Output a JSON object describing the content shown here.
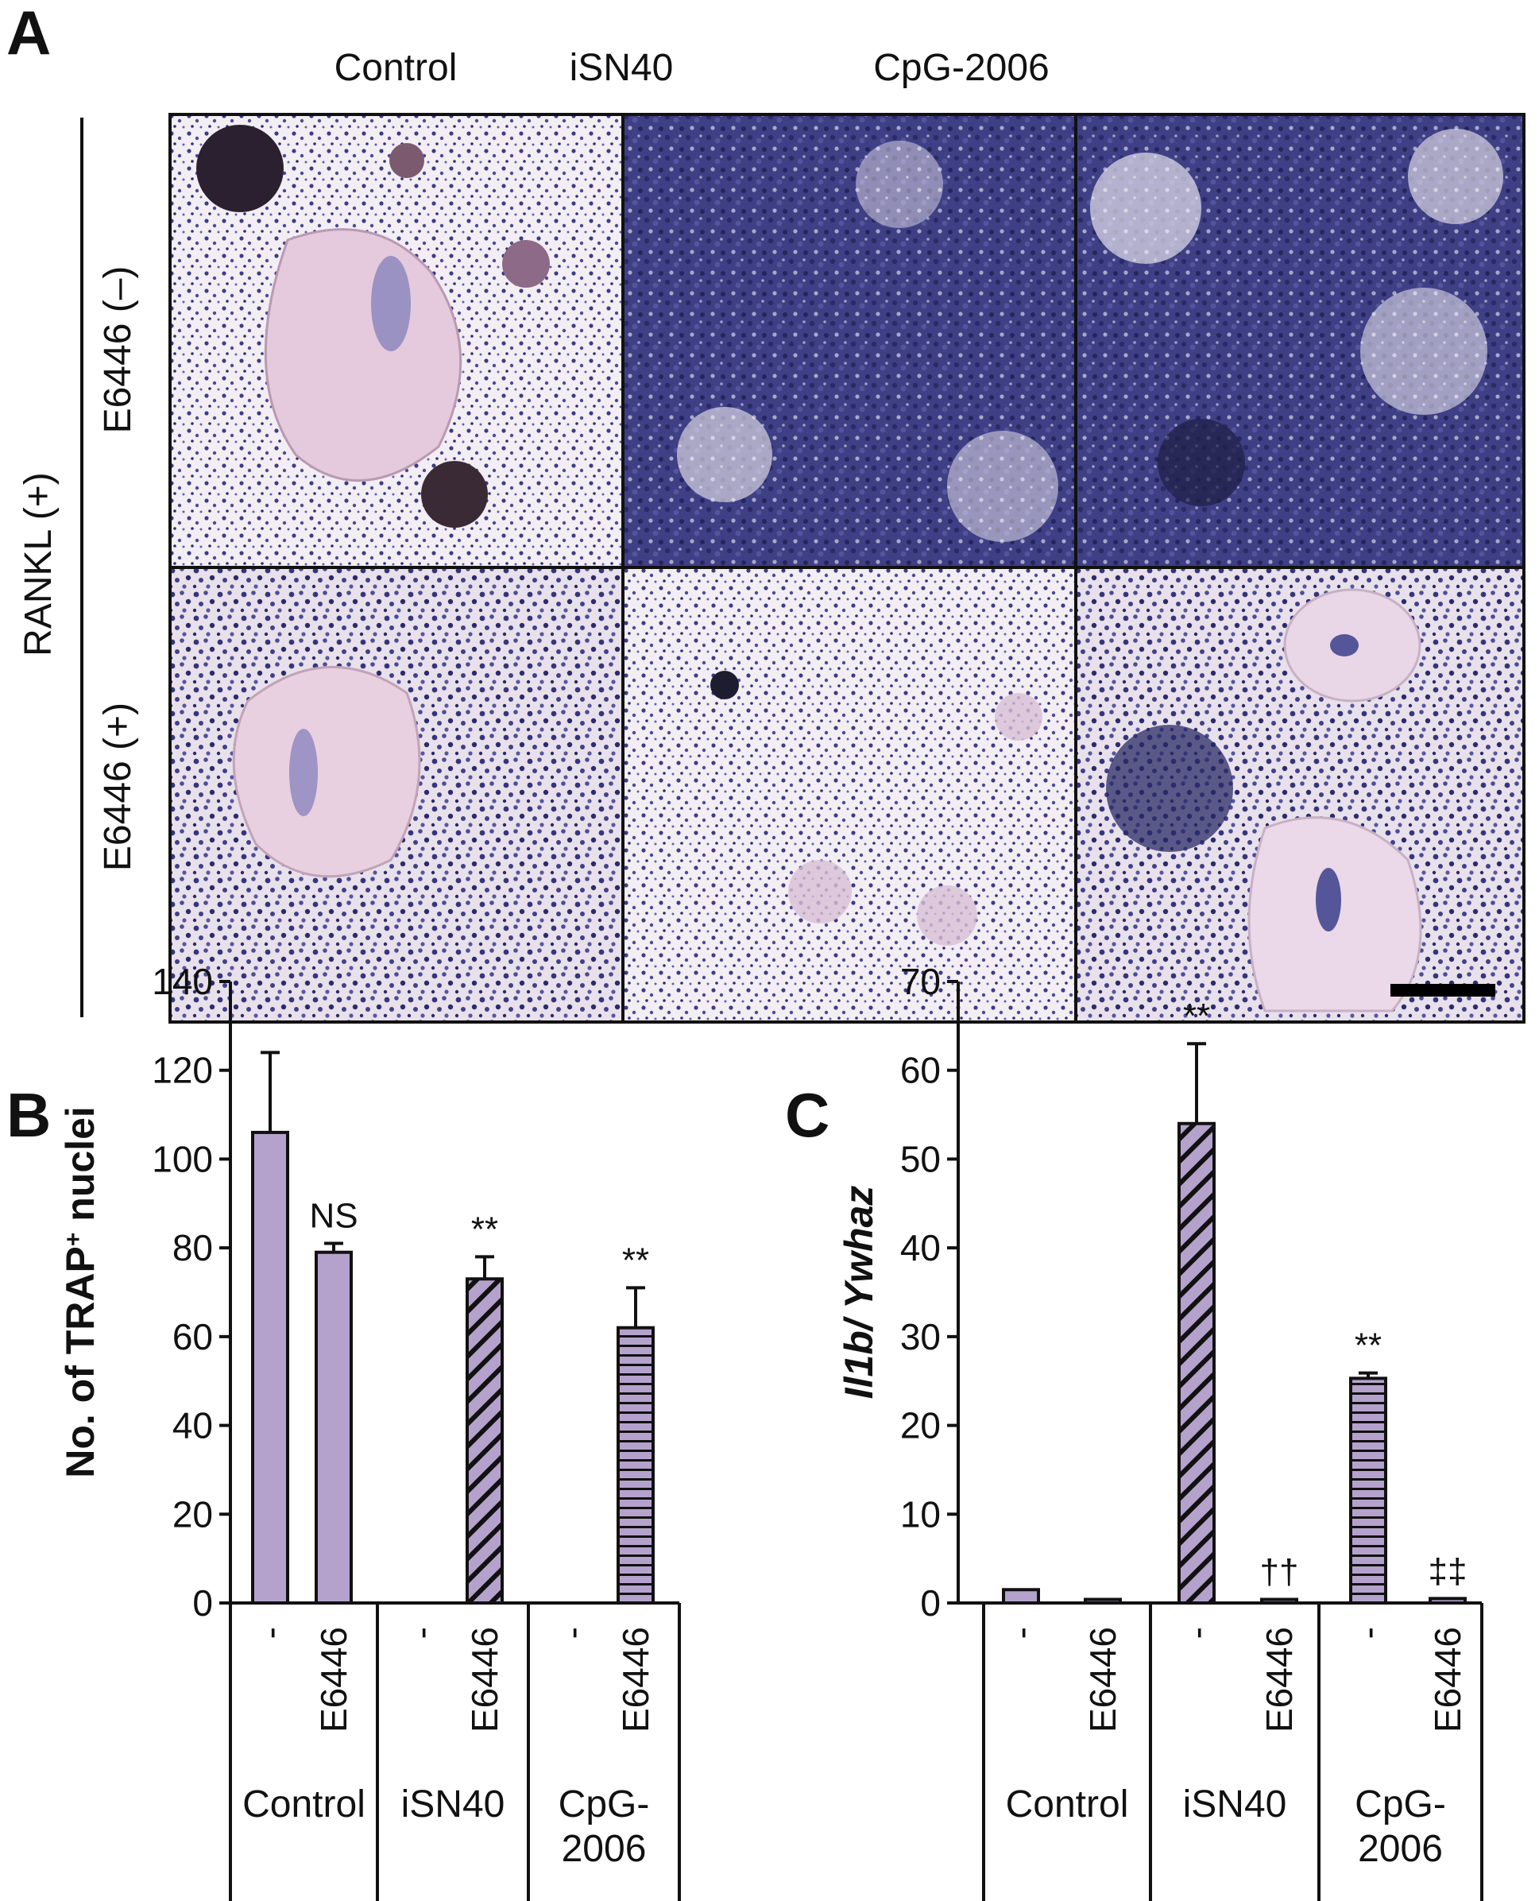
{
  "panel_a": {
    "letter": "A",
    "columns": [
      "Control",
      "iSN40",
      "CpG-2006"
    ],
    "group_label": "RANKL (+)",
    "rows": [
      "E6446 (–)",
      "E6446 (+)"
    ]
  },
  "chart_data": [
    {
      "type": "bar",
      "panel": "B",
      "title": "",
      "ylabel_parts": [
        "No. of TRAP",
        "+",
        " nuclei"
      ],
      "ylim": [
        0,
        140
      ],
      "yticks": [
        0,
        20,
        40,
        60,
        80,
        100,
        120,
        140
      ],
      "categories": [
        "-",
        "E6446",
        "-",
        "E6446",
        "-",
        "E6446"
      ],
      "groups": [
        {
          "label_lines": [
            "Control"
          ],
          "members": [
            0,
            1
          ]
        },
        {
          "label_lines": [
            "iSN40"
          ],
          "members": [
            2,
            3
          ]
        },
        {
          "label_lines": [
            "CpG-",
            "2006"
          ],
          "members": [
            4,
            5
          ]
        }
      ],
      "values": [
        106,
        79,
        0,
        73,
        0,
        62
      ],
      "errors": [
        18,
        2,
        0,
        5,
        0,
        9
      ],
      "patterns": [
        "solid",
        "solid",
        "solid",
        "diagonal",
        "solid",
        "horizontal"
      ],
      "annotations": [
        "",
        "NS",
        "",
        "**",
        "",
        "**"
      ],
      "bar_color": "#b5a2cc",
      "legend": "none",
      "grid": false
    },
    {
      "type": "bar",
      "panel": "C",
      "title": "",
      "ylabel_parts": [
        "Il1b",
        "/ Ywhaz"
      ],
      "ylim": [
        0,
        70
      ],
      "yticks": [
        0,
        10,
        20,
        30,
        40,
        50,
        60,
        70
      ],
      "categories": [
        "-",
        "E6446",
        "-",
        "E6446",
        "-",
        "E6446"
      ],
      "groups": [
        {
          "label_lines": [
            "Control"
          ],
          "members": [
            0,
            1
          ]
        },
        {
          "label_lines": [
            "iSN40"
          ],
          "members": [
            2,
            3
          ]
        },
        {
          "label_lines": [
            "CpG-",
            "2006"
          ],
          "members": [
            4,
            5
          ]
        }
      ],
      "values": [
        1.5,
        0.4,
        54,
        0.4,
        25.3,
        0.5
      ],
      "errors": [
        0,
        0,
        9,
        0,
        0.6,
        0
      ],
      "patterns": [
        "solid",
        "solid",
        "diagonal",
        "solid",
        "horizontal",
        "solid"
      ],
      "annotations": [
        "",
        "",
        "**",
        "††",
        "**",
        "‡‡"
      ],
      "bar_color": "#b5a2cc",
      "legend": "none",
      "grid": false
    }
  ]
}
